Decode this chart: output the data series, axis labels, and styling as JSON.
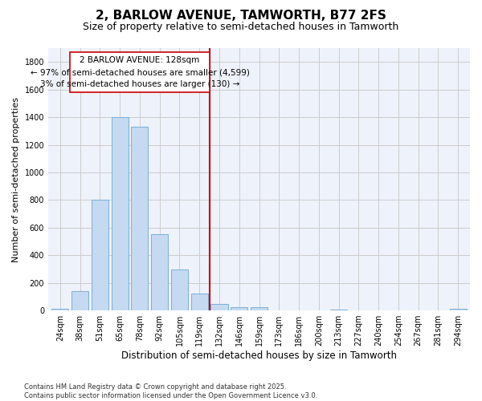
{
  "title": "2, BARLOW AVENUE, TAMWORTH, B77 2FS",
  "subtitle": "Size of property relative to semi-detached houses in Tamworth",
  "xlabel": "Distribution of semi-detached houses by size in Tamworth",
  "ylabel": "Number of semi-detached properties",
  "categories": [
    "24sqm",
    "38sqm",
    "51sqm",
    "65sqm",
    "78sqm",
    "92sqm",
    "105sqm",
    "119sqm",
    "132sqm",
    "146sqm",
    "159sqm",
    "173sqm",
    "186sqm",
    "200sqm",
    "213sqm",
    "227sqm",
    "240sqm",
    "254sqm",
    "267sqm",
    "281sqm",
    "294sqm"
  ],
  "values": [
    15,
    140,
    800,
    1400,
    1330,
    550,
    295,
    120,
    45,
    25,
    25,
    0,
    0,
    0,
    8,
    0,
    0,
    0,
    0,
    0,
    12
  ],
  "bar_color": "#c5d9f1",
  "bar_edge_color": "#7ab0d9",
  "vline_color": "#cc0000",
  "annotation_line1": "2 BARLOW AVENUE: 128sqm",
  "annotation_line2": "← 97% of semi-detached houses are smaller (4,599)",
  "annotation_line3": "3% of semi-detached houses are larger (130) →",
  "annotation_box_color": "#ffffff",
  "annotation_box_edge_color": "#cc0000",
  "ylim": [
    0,
    1900
  ],
  "yticks": [
    0,
    200,
    400,
    600,
    800,
    1000,
    1200,
    1400,
    1600,
    1800
  ],
  "grid_color": "#cccccc",
  "bg_color": "#eef2fb",
  "footer": "Contains HM Land Registry data © Crown copyright and database right 2025.\nContains public sector information licensed under the Open Government Licence v3.0.",
  "title_fontsize": 11,
  "subtitle_fontsize": 9,
  "xlabel_fontsize": 8.5,
  "ylabel_fontsize": 8,
  "tick_fontsize": 7,
  "annotation_fontsize": 7.5,
  "footer_fontsize": 6
}
